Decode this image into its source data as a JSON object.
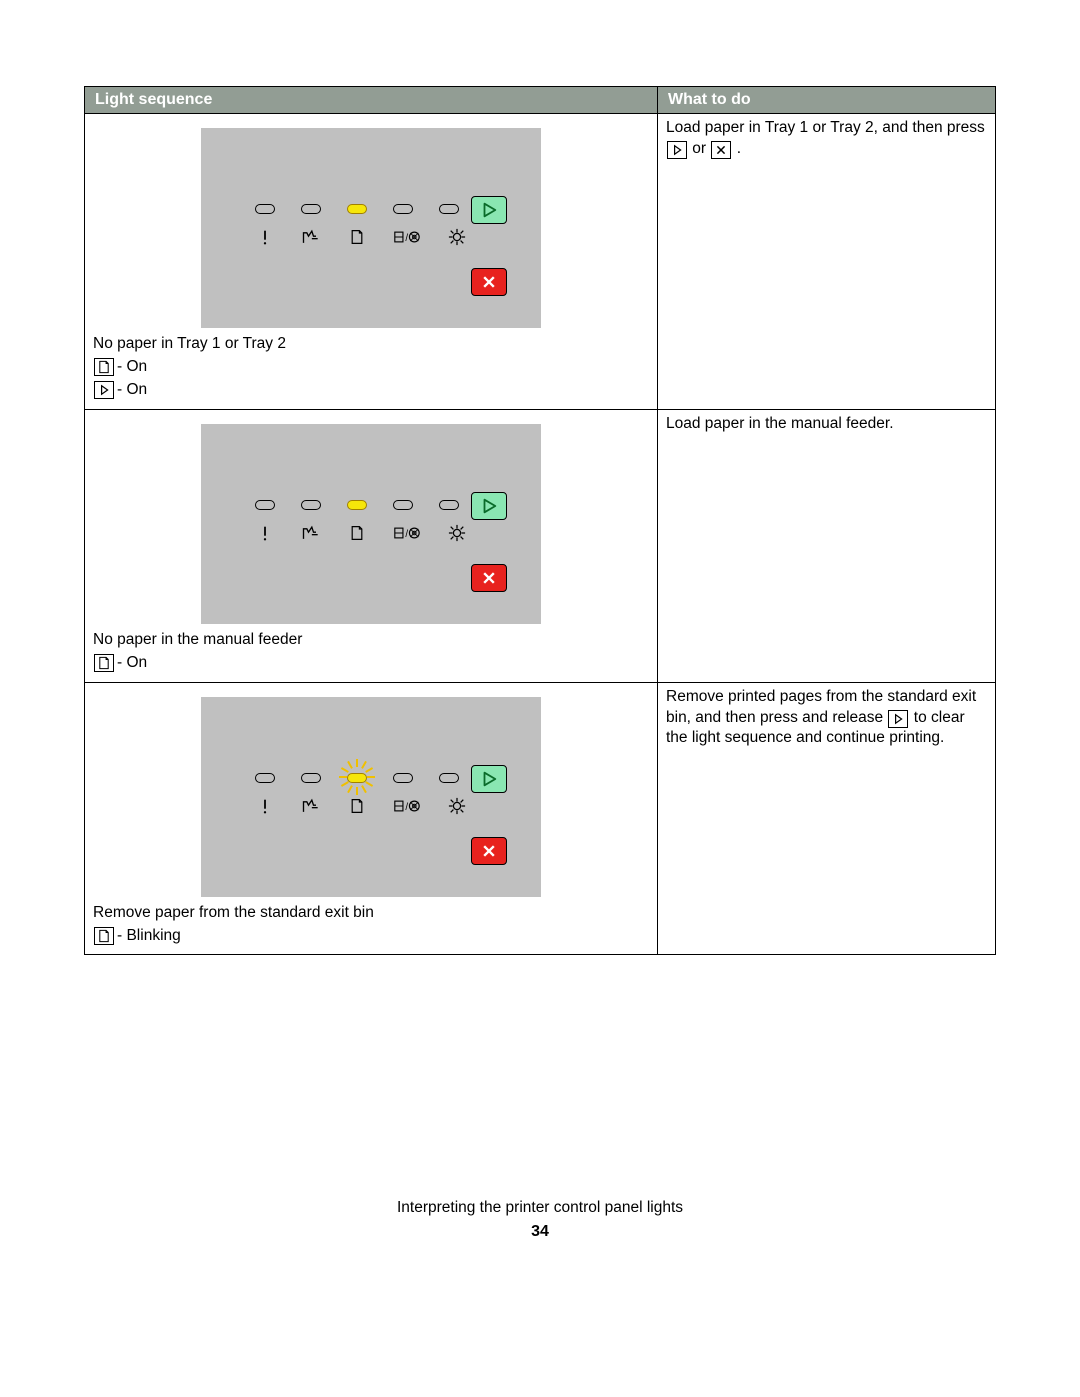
{
  "table": {
    "headers": {
      "col1": "Light sequence",
      "col2": "What to do"
    },
    "rows": [
      {
        "panel": {
          "led_lit_index": 2,
          "blinking": false
        },
        "caption": "No paper in Tray 1 or Tray 2",
        "legend": [
          {
            "icon": "paper",
            "text": "- On"
          },
          {
            "icon": "play",
            "text": "- On"
          }
        ],
        "action_pre": "Load paper in Tray 1 or Tray 2, and then press",
        "action_btn1": "play",
        "action_mid": "or",
        "action_btn2": "x",
        "action_post": "."
      },
      {
        "panel": {
          "led_lit_index": 2,
          "blinking": false
        },
        "caption": "No paper in the manual feeder",
        "legend": [
          {
            "icon": "paper",
            "text": "- On"
          }
        ],
        "action_text": "Load paper in the manual feeder."
      },
      {
        "panel": {
          "led_lit_index": 2,
          "blinking": true
        },
        "caption": "Remove paper from the standard exit bin",
        "legend": [
          {
            "icon": "paper",
            "text": "- Blinking"
          }
        ],
        "action_pre": "Remove printed pages from the standard exit bin, and then press and release",
        "action_btn1": "play",
        "action_post": "to clear the light sequence and continue printing."
      }
    ]
  },
  "footer": {
    "title": "Interpreting the printer control panel lights",
    "page": "34"
  },
  "colors": {
    "header_bg": "#929d94",
    "panel_bg": "#c0c0c0",
    "led_lit": "#f6e60a",
    "go_btn": "#8ae6b2",
    "cancel_btn": "#e8221e"
  }
}
